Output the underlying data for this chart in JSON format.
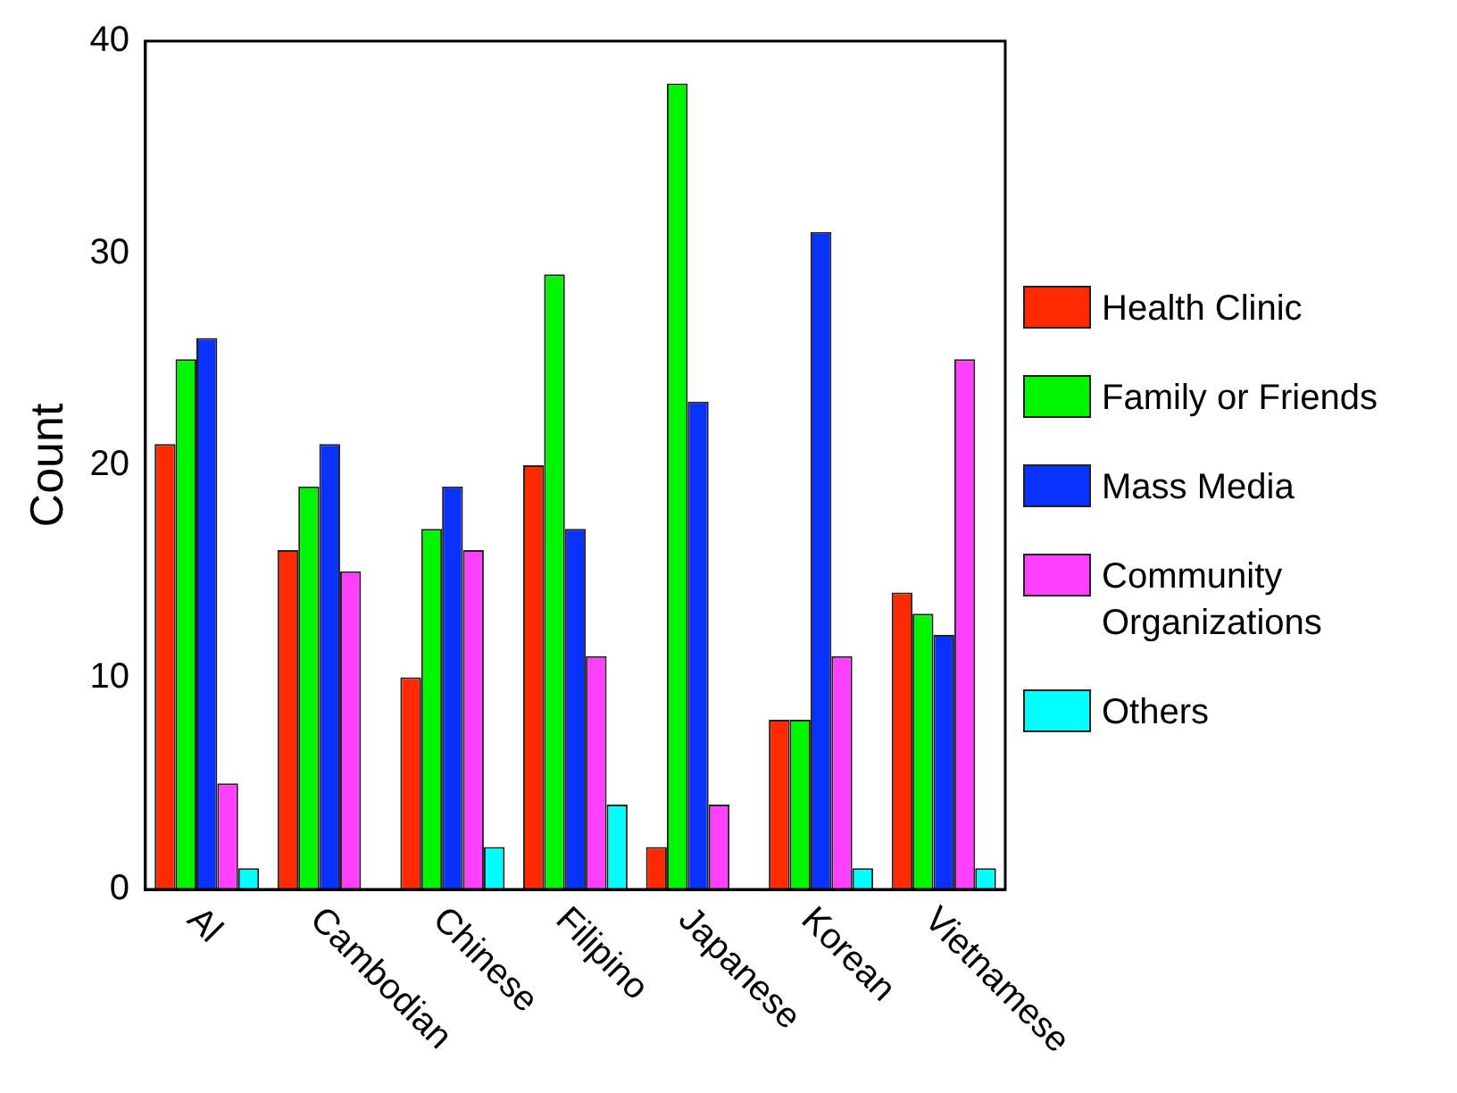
{
  "chart_data": {
    "type": "bar",
    "ylabel": "Count",
    "categories": [
      "Al",
      "Cambodian",
      "Chinese",
      "Filipino",
      "Japanese",
      "Korean",
      "Vietnamese"
    ],
    "series": [
      {
        "name": "Health Clinic",
        "color": "#ff2a00",
        "values": [
          21,
          16,
          10,
          20,
          2,
          8,
          14
        ]
      },
      {
        "name": "Family or Friends",
        "color": "#00f500",
        "values": [
          25,
          19,
          17,
          29,
          38,
          8,
          13
        ]
      },
      {
        "name": "Mass Media",
        "color": "#0a32ff",
        "values": [
          26,
          21,
          19,
          17,
          23,
          31,
          12
        ]
      },
      {
        "name": "Community Organizations",
        "color": "#ff40ff",
        "values": [
          5,
          15,
          16,
          11,
          4,
          11,
          25
        ]
      },
      {
        "name": "Others",
        "color": "#00ffff",
        "values": [
          1,
          0,
          2,
          4,
          0,
          1,
          1
        ]
      }
    ],
    "ylim": [
      0,
      40
    ],
    "yticks": [
      0,
      10,
      20,
      30,
      40
    ],
    "grid": false,
    "legend": "right"
  }
}
